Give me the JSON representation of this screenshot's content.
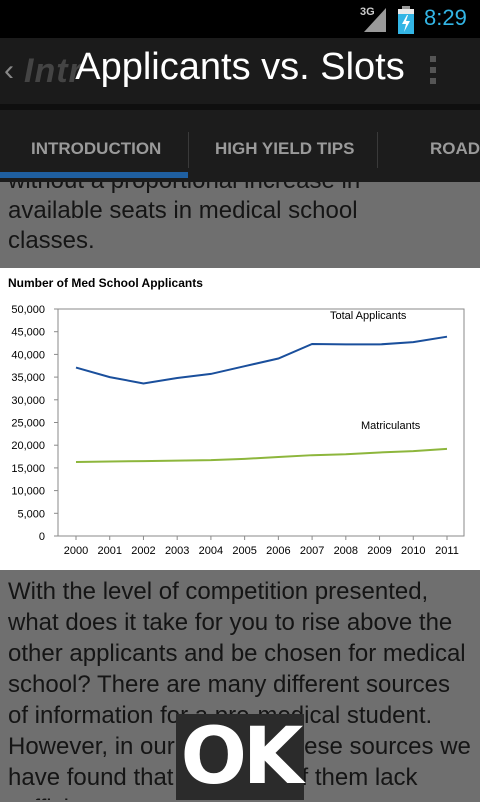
{
  "status_bar": {
    "network": "3G",
    "time": "8:29"
  },
  "action_bar": {
    "app_title": "Intr"
  },
  "dialog": {
    "title": "Applicants vs. Slots",
    "ok_label": "OK"
  },
  "tabs": [
    {
      "label": "INTRODUCTION",
      "selected": true
    },
    {
      "label": "HIGH YIELD TIPS",
      "selected": false
    },
    {
      "label": "ROADI",
      "selected": false
    }
  ],
  "content": {
    "top_text_partial": "without a proportional increase in",
    "top_text_line1": "available seats in medical school",
    "top_text_line2": "classes.",
    "bottom_text": "With the level of competition presented, what does it take for you to rise above the other applicants and be chosen for medical school? There are many different sources of information for a pre-medical student. However, in our review of these sources we have found that almost all of them lack sufficient"
  },
  "chart_data": {
    "type": "line",
    "title": "Number of Med School Applicants",
    "xlabel": "",
    "ylabel": "",
    "x": [
      2000,
      2001,
      2002,
      2003,
      2004,
      2005,
      2006,
      2007,
      2008,
      2009,
      2010,
      2011
    ],
    "ylim": [
      0,
      50000
    ],
    "yticks": [
      "50,000",
      "45,000",
      "40,000",
      "35,000",
      "30,000",
      "25,000",
      "20,000",
      "15,000",
      "10,000",
      "5,000",
      "0"
    ],
    "grid": false,
    "series": [
      {
        "name": "Total Applicants",
        "color": "#1a4f9c",
        "values": [
          37100,
          35000,
          33600,
          34800,
          35700,
          37400,
          39100,
          42300,
          42200,
          42200,
          42700,
          43900
        ]
      },
      {
        "name": "Matriculants",
        "color": "#8db63c",
        "values": [
          16300,
          16400,
          16500,
          16600,
          16700,
          17000,
          17400,
          17800,
          18000,
          18400,
          18700,
          19200
        ]
      }
    ]
  }
}
